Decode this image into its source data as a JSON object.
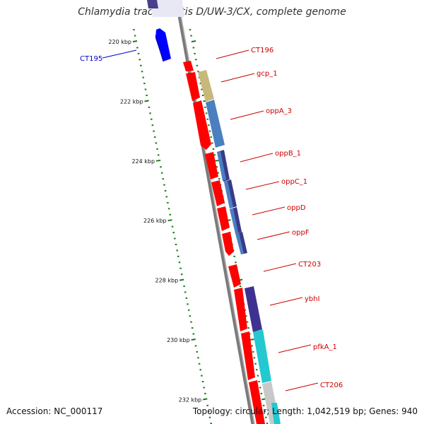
{
  "title": "Chlamydia trachomatis D/UW-3/CX, complete genome",
  "footer": {
    "accession": "Accession: NC_000117",
    "stats": "Topology: circular; Length: 1,042,519 bp; Genes: 940"
  },
  "colors": {
    "forward_gene": "#ff0000",
    "reverse_gene": "#0000ff",
    "backbone": "#808080",
    "tick": "#1a7a1a",
    "label_red": "#cc0000",
    "label_blue": "#0000cc"
  },
  "ticks": [
    {
      "kbp": 220,
      "label": "220 kbp"
    },
    {
      "kbp": 222,
      "label": "222 kbp"
    },
    {
      "kbp": 224,
      "label": "224 kbp"
    },
    {
      "kbp": 226,
      "label": "226 kbp"
    },
    {
      "kbp": 228,
      "label": "228 kbp"
    },
    {
      "kbp": 230,
      "label": "230 kbp"
    },
    {
      "kbp": 232,
      "label": "232 kbp"
    }
  ],
  "genes": [
    {
      "name": "CT195",
      "strand": "reverse"
    },
    {
      "name": "CT196",
      "strand": "forward"
    },
    {
      "name": "gcp_1",
      "strand": "forward"
    },
    {
      "name": "oppA_3",
      "strand": "forward"
    },
    {
      "name": "oppB_1",
      "strand": "forward"
    },
    {
      "name": "oppC_1",
      "strand": "forward"
    },
    {
      "name": "oppD",
      "strand": "forward"
    },
    {
      "name": "oppF",
      "strand": "forward"
    },
    {
      "name": "CT203",
      "strand": "forward"
    },
    {
      "name": "ybhI",
      "strand": "forward"
    },
    {
      "name": "pfkA_1",
      "strand": "forward"
    },
    {
      "name": "CT206",
      "strand": "forward"
    }
  ]
}
